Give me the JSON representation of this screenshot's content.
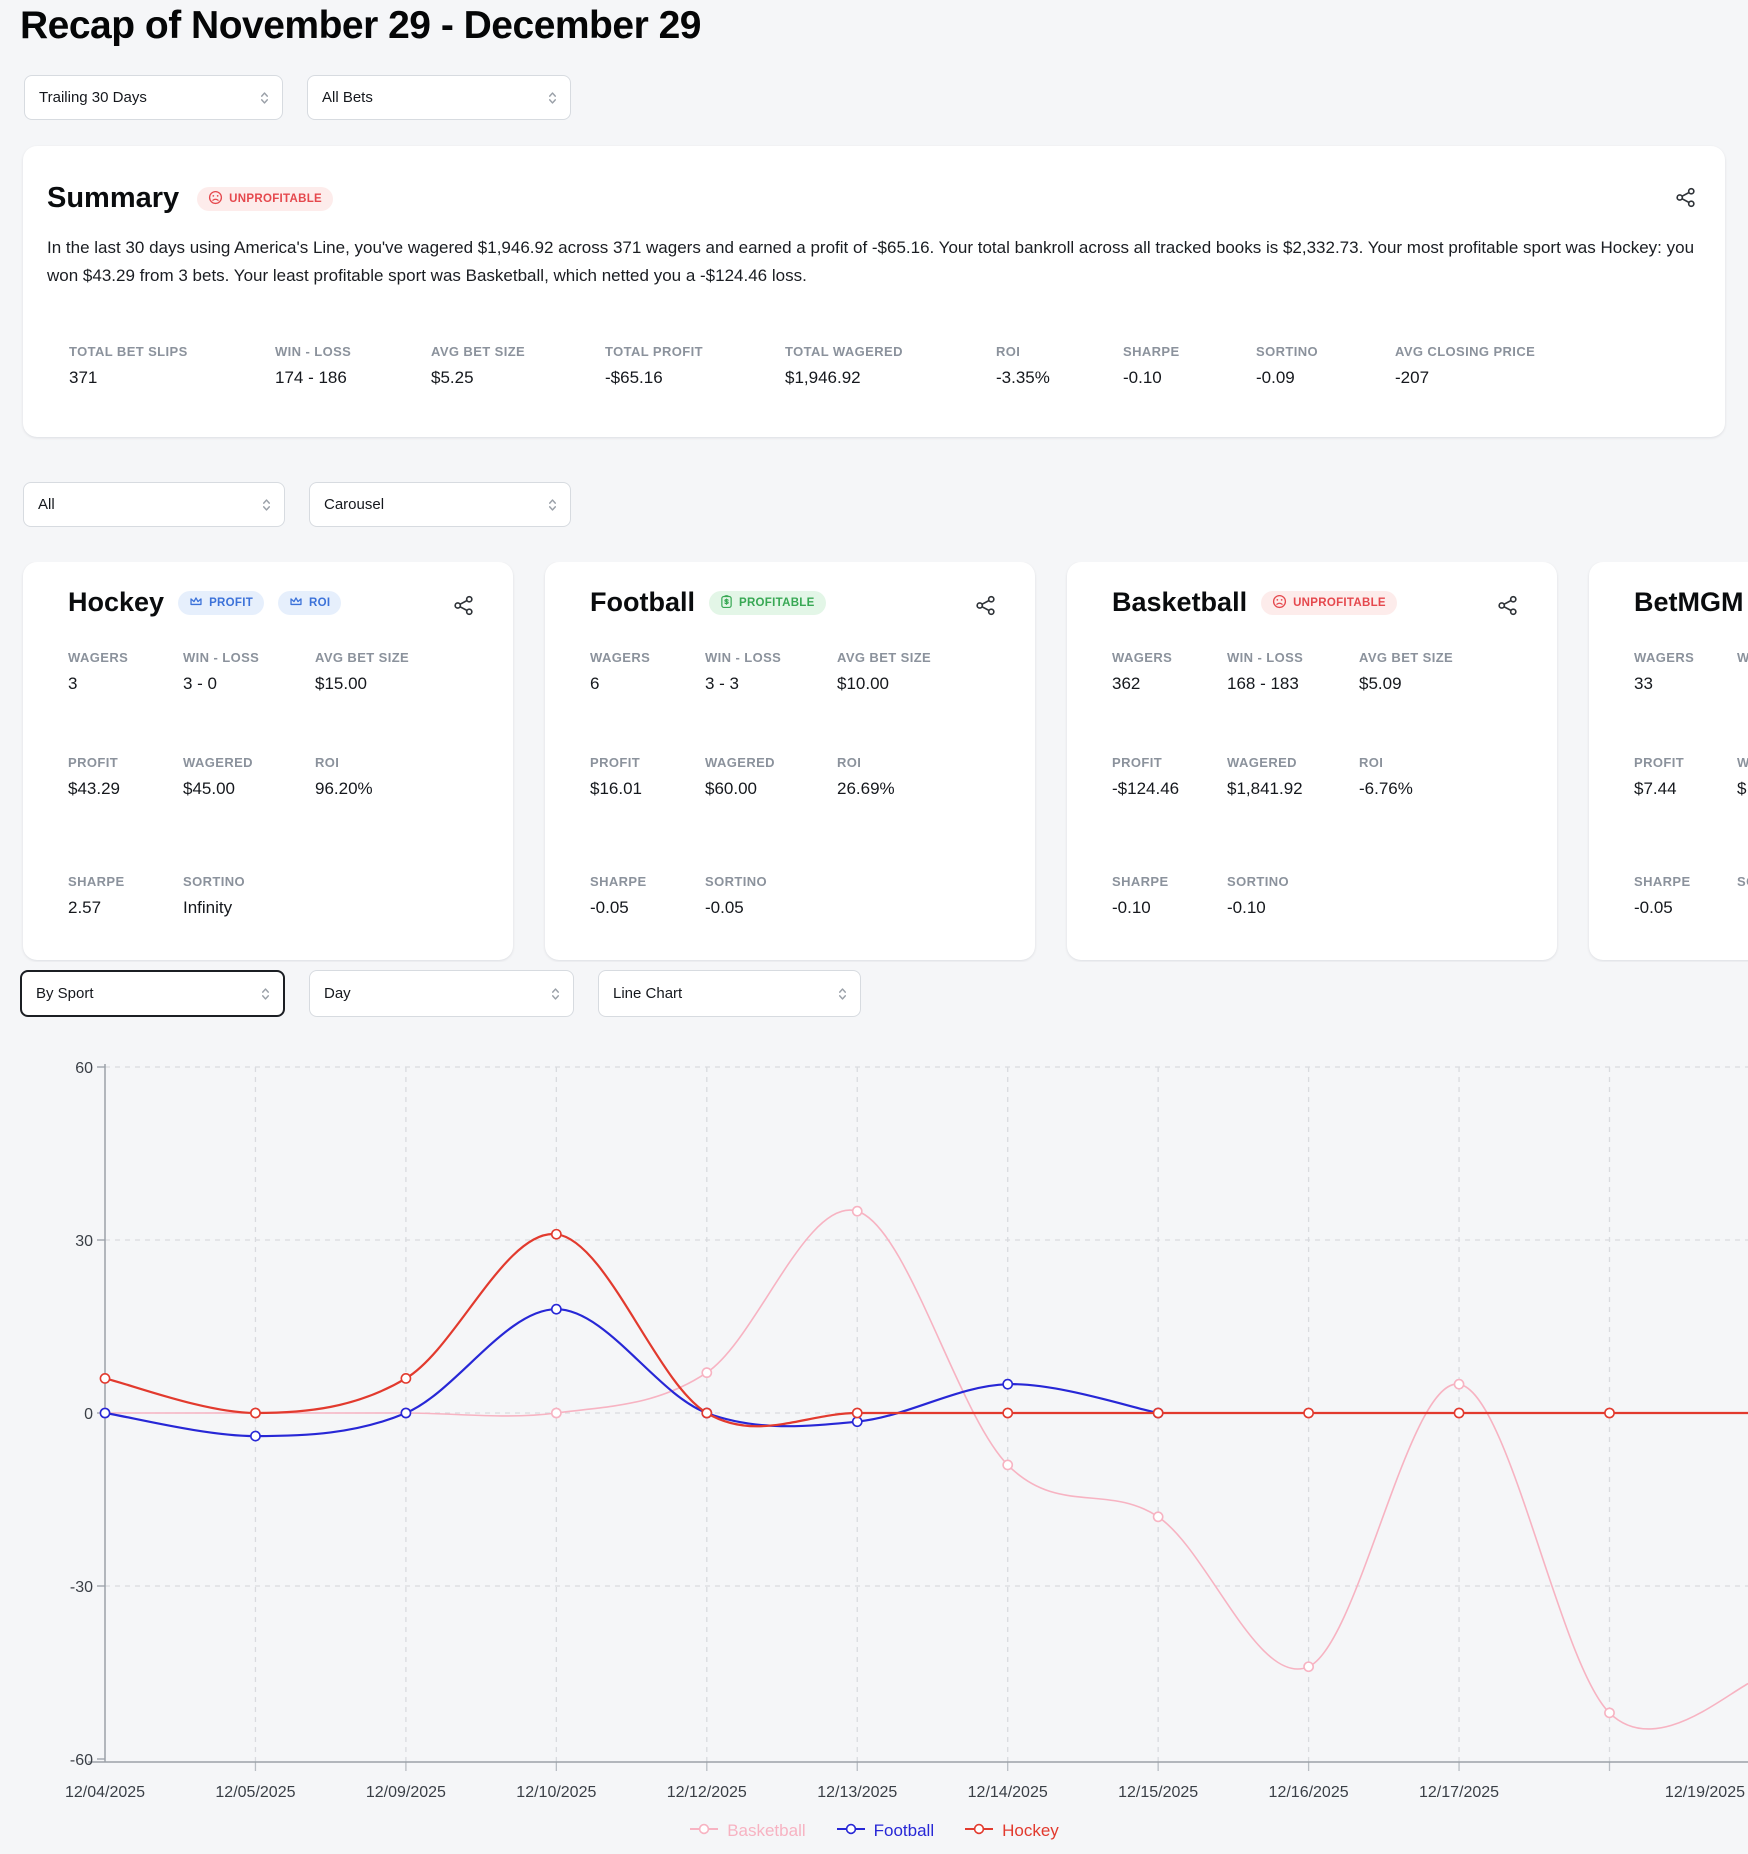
{
  "page": {
    "title": "Recap of November 29 - December 29"
  },
  "filters_top": [
    {
      "name": "timeframe-select",
      "value": "Trailing 30 Days"
    },
    {
      "name": "bet-type-select",
      "value": "All Bets"
    }
  ],
  "summary": {
    "title": "Summary",
    "status_badge": {
      "label": "UNPROFITABLE",
      "icon": "frown-icon",
      "color": "#e5484d",
      "bg": "#fdeceb"
    },
    "paragraph": "In the last 30 days using America's Line, you've wagered $1,946.92 across 371 wagers and earned a profit of -$65.16. Your total bankroll across all tracked books is $2,332.73. Your most profitable sport was Hockey: you won $43.29 from 3 bets. Your least profitable sport was Basketball, which netted you a -$124.46 loss.",
    "stats": [
      {
        "label": "TOTAL BET SLIPS",
        "value": "371"
      },
      {
        "label": "WIN - LOSS",
        "value": "174 - 186"
      },
      {
        "label": "AVG BET SIZE",
        "value": "$5.25"
      },
      {
        "label": "TOTAL PROFIT",
        "value": "-$65.16"
      },
      {
        "label": "TOTAL WAGERED",
        "value": "$1,946.92"
      },
      {
        "label": "ROI",
        "value": "-3.35%"
      },
      {
        "label": "SHARPE",
        "value": "-0.10"
      },
      {
        "label": "SORTINO",
        "value": "-0.09"
      },
      {
        "label": "AVG CLOSING PRICE",
        "value": "-207"
      }
    ]
  },
  "filters_mid": [
    {
      "name": "sport-filter-select",
      "value": "All"
    },
    {
      "name": "layout-select",
      "value": "Carousel"
    }
  ],
  "cards": [
    {
      "title": "Hockey",
      "badges": [
        {
          "label": "PROFIT",
          "type": "blue",
          "icon": "crown-icon"
        },
        {
          "label": "ROI",
          "type": "blue",
          "icon": "crown-icon"
        }
      ],
      "rows": [
        [
          {
            "label": "WAGERS",
            "value": "3"
          },
          {
            "label": "WIN - LOSS",
            "value": "3 - 0"
          },
          {
            "label": "AVG BET SIZE",
            "value": "$15.00"
          }
        ],
        [
          {
            "label": "PROFIT",
            "value": "$43.29"
          },
          {
            "label": "WAGERED",
            "value": "$45.00"
          },
          {
            "label": "ROI",
            "value": "96.20%"
          }
        ],
        [
          {
            "label": "SHARPE",
            "value": "2.57"
          },
          {
            "label": "SORTINO",
            "value": "Infinity"
          }
        ]
      ]
    },
    {
      "title": "Football",
      "badges": [
        {
          "label": "PROFITABLE",
          "type": "green",
          "icon": "money-icon"
        }
      ],
      "rows": [
        [
          {
            "label": "WAGERS",
            "value": "6"
          },
          {
            "label": "WIN - LOSS",
            "value": "3 - 3"
          },
          {
            "label": "AVG BET SIZE",
            "value": "$10.00"
          }
        ],
        [
          {
            "label": "PROFIT",
            "value": "$16.01"
          },
          {
            "label": "WAGERED",
            "value": "$60.00"
          },
          {
            "label": "ROI",
            "value": "26.69%"
          }
        ],
        [
          {
            "label": "SHARPE",
            "value": "-0.05"
          },
          {
            "label": "SORTINO",
            "value": "-0.05"
          }
        ]
      ]
    },
    {
      "title": "Basketball",
      "badges": [
        {
          "label": "UNPROFITABLE",
          "type": "red",
          "icon": "frown-icon"
        }
      ],
      "rows": [
        [
          {
            "label": "WAGERS",
            "value": "362"
          },
          {
            "label": "WIN - LOSS",
            "value": "168 - 183"
          },
          {
            "label": "AVG BET SIZE",
            "value": "$5.09"
          }
        ],
        [
          {
            "label": "PROFIT",
            "value": "-$124.46"
          },
          {
            "label": "WAGERED",
            "value": "$1,841.92"
          },
          {
            "label": "ROI",
            "value": "-6.76%"
          }
        ],
        [
          {
            "label": "SHARPE",
            "value": "-0.10"
          },
          {
            "label": "SORTINO",
            "value": "-0.10"
          }
        ]
      ]
    },
    {
      "title": "BetMGM",
      "badges": [],
      "rows": [
        [
          {
            "label": "WAGERS",
            "value": "33"
          },
          {
            "label": "WIN - LOSS",
            "value": ""
          }
        ],
        [
          {
            "label": "PROFIT",
            "value": "$7.44"
          },
          {
            "label": "WAGERED",
            "value": "$"
          }
        ],
        [
          {
            "label": "SHARPE",
            "value": "-0.05"
          },
          {
            "label": "SORTINO",
            "value": ""
          }
        ]
      ]
    }
  ],
  "filters_chart": [
    {
      "name": "group-by-select",
      "value": "By Sport",
      "focused": true
    },
    {
      "name": "interval-select",
      "value": "Day"
    },
    {
      "name": "chart-type-select",
      "value": "Line Chart"
    }
  ],
  "chart_data": {
    "type": "line",
    "title": "",
    "xlabel": "",
    "ylabel": "",
    "ylim": [
      -60,
      60
    ],
    "y_ticks": [
      60,
      30,
      0,
      -30,
      -60
    ],
    "grid": true,
    "legend_position": "bottom",
    "x_labels": [
      "12/04/2025",
      "12/05/2025",
      "12/09/2025",
      "12/10/2025",
      "12/12/2025",
      "12/13/2025",
      "12/14/2025",
      "12/15/2025",
      "12/16/2025",
      "12/17/2025",
      "",
      "12/19/2025"
    ],
    "series": [
      {
        "name": "Basketball",
        "color": "#F7B3C2",
        "values": [
          0,
          0,
          0,
          0,
          7,
          35,
          -9,
          -18,
          -44,
          5,
          -52,
          -46
        ]
      },
      {
        "name": "Football",
        "color": "#2727D6",
        "values": [
          0,
          -4,
          0,
          18,
          0,
          -1.5,
          5,
          0,
          null,
          null,
          null,
          null
        ]
      },
      {
        "name": "Hockey",
        "color": "#E23A2E",
        "values": [
          6,
          0,
          6,
          31,
          0,
          0,
          0,
          0,
          0,
          0,
          0,
          0
        ]
      }
    ]
  }
}
